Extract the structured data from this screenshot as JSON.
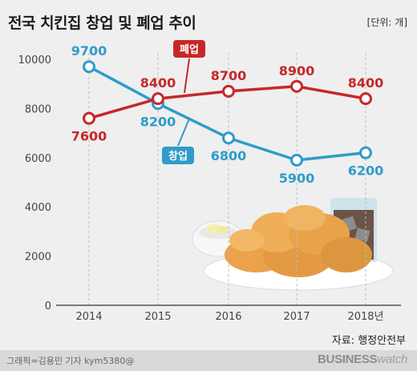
{
  "header": {
    "title": "전국 치킨집 창업 및 폐업 추이",
    "unit": "[단위: 개]"
  },
  "source": "자료: 행정안전부",
  "footer": {
    "credit": "그래픽=김용민 기자 kym5380@",
    "brand_bold": "BUSINESS",
    "brand_light": "watch"
  },
  "colors": {
    "closure": "#c62828",
    "opening": "#2f9cc9",
    "grid": "#bdbdbd",
    "axis": "#333333"
  },
  "chart_data": {
    "type": "line",
    "categories": [
      "2014",
      "2015",
      "2016",
      "2017",
      "2018년"
    ],
    "ylim": [
      0,
      10000
    ],
    "yticks": [
      "0",
      "2000",
      "4000",
      "6000",
      "8000",
      "10000"
    ],
    "grid": "vertical-dashed",
    "series": [
      {
        "name": "창업",
        "values": [
          9700,
          8200,
          6800,
          5900,
          6200
        ],
        "color": "#2f9cc9",
        "labels": [
          "9700",
          "8200",
          "6800",
          "5900",
          "6200"
        ]
      },
      {
        "name": "폐업",
        "values": [
          7600,
          8400,
          8700,
          8900,
          8400
        ],
        "color": "#c62828",
        "labels": [
          "7600",
          "8400",
          "8700",
          "8900",
          "8400"
        ]
      }
    ],
    "decoration": "fried-chicken-plate-illustration"
  }
}
